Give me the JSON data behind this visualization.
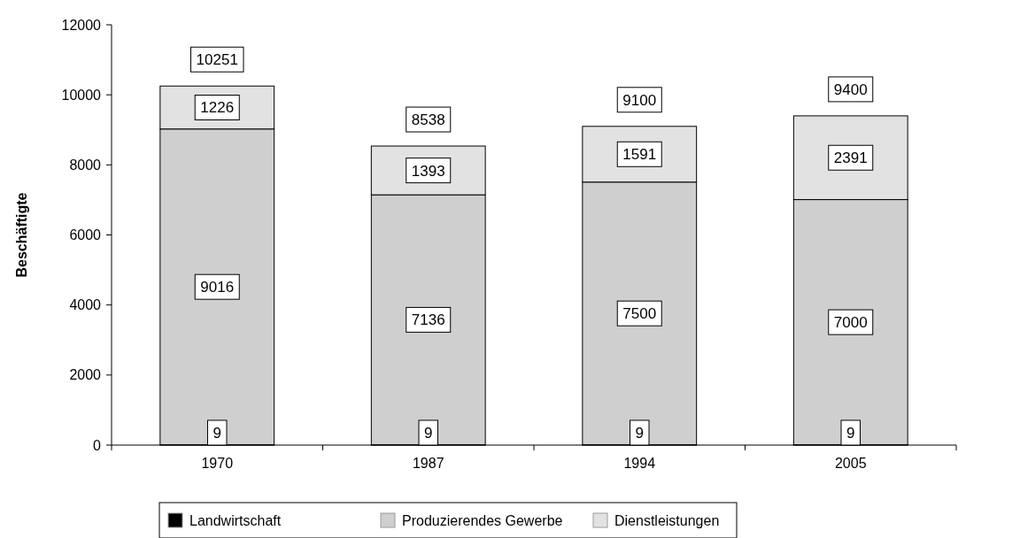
{
  "chart_data": {
    "type": "bar",
    "stacked": true,
    "ylabel": "Beschäftigte",
    "categories": [
      "1970",
      "1987",
      "1994",
      "2005"
    ],
    "series": [
      {
        "name": "Landwirtschaft",
        "color": "#000000",
        "values": [
          9,
          9,
          9,
          9
        ]
      },
      {
        "name": "Produzierendes Gewerbe",
        "color": "#cfcfcf",
        "values": [
          9016,
          7136,
          7500,
          7000
        ]
      },
      {
        "name": "Dienstleistungen",
        "color": "#e2e2e2",
        "values": [
          1226,
          1393,
          1591,
          2391
        ]
      }
    ],
    "ylim": [
      0,
      12000
    ],
    "yticks": [
      0,
      2000,
      4000,
      6000,
      8000,
      10000,
      12000
    ],
    "data_labels": true,
    "totals": [
      "10251",
      "8538",
      "9100",
      "9400"
    ],
    "legend": "bottom",
    "grid": false
  }
}
